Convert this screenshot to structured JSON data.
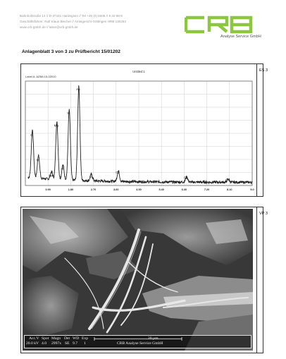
{
  "letterhead": {
    "line1": "Bahnhofstraße 14 // D-37181 Hardegsen // Tel +49 (0) 5505 // 9 40 98-9",
    "line2": "Geschäftsführer: Ralf Klaus Blecher // Amtsgericht Göttingen HRB 130263",
    "line3": "www.crb-gmbh.de // labor@crb-gmbh.de",
    "logo_text": "CRB",
    "logo_subtitle": "Analyse Service GmbH",
    "logo_color": "#8dc63f"
  },
  "document_title": "Anlagenblatt 3 von 3 zu Prüfbericht 15/01202",
  "panel1": {
    "label": "ES 3",
    "spectrum_title": "Untitled:1",
    "spectrum_label": "Label A: AZBA   15-02010",
    "x_ticks": [
      "0.90",
      "1.80",
      "2.70",
      "3.60",
      "4.50",
      "5.40",
      "6.30",
      "7.20",
      "8.10",
      "9.0"
    ],
    "peaks": [
      {
        "label": "C",
        "energy": 0.28,
        "height": 0.46
      },
      {
        "label": "O",
        "energy": 0.52,
        "height": 0.22
      },
      {
        "label": "Na",
        "energy": 1.04,
        "height": 0.07
      },
      {
        "label": "Mg",
        "energy": 1.25,
        "height": 0.55
      },
      {
        "label": "Al",
        "energy": 1.49,
        "height": 0.14
      },
      {
        "label": "Si",
        "energy": 1.74,
        "height": 0.67
      },
      {
        "label": "Au",
        "energy": 2.12,
        "height": 0.9
      },
      {
        "label": "Cl",
        "energy": 2.62,
        "height": 0.06
      },
      {
        "label": "Ca",
        "energy": 3.69,
        "height": 0.1
      },
      {
        "label": "Fe",
        "energy": 6.4,
        "height": 0.05
      },
      {
        "label": "Cu",
        "energy": 8.05,
        "height": 0.03
      }
    ]
  },
  "panel2": {
    "label": "VP 3",
    "databar": {
      "h1": "Acc.V",
      "h2": "Spot",
      "h3": "Magn",
      "h4": "Det",
      "h5": "WD",
      "h6": "Exp",
      "v1": "20.0 kV",
      "v2": "4.0",
      "v3": "2997x",
      "v4": "SE",
      "v5": "9.7",
      "v6": "1",
      "scale": "20 µm",
      "company": "CRB Analyse Service GmbH"
    }
  }
}
